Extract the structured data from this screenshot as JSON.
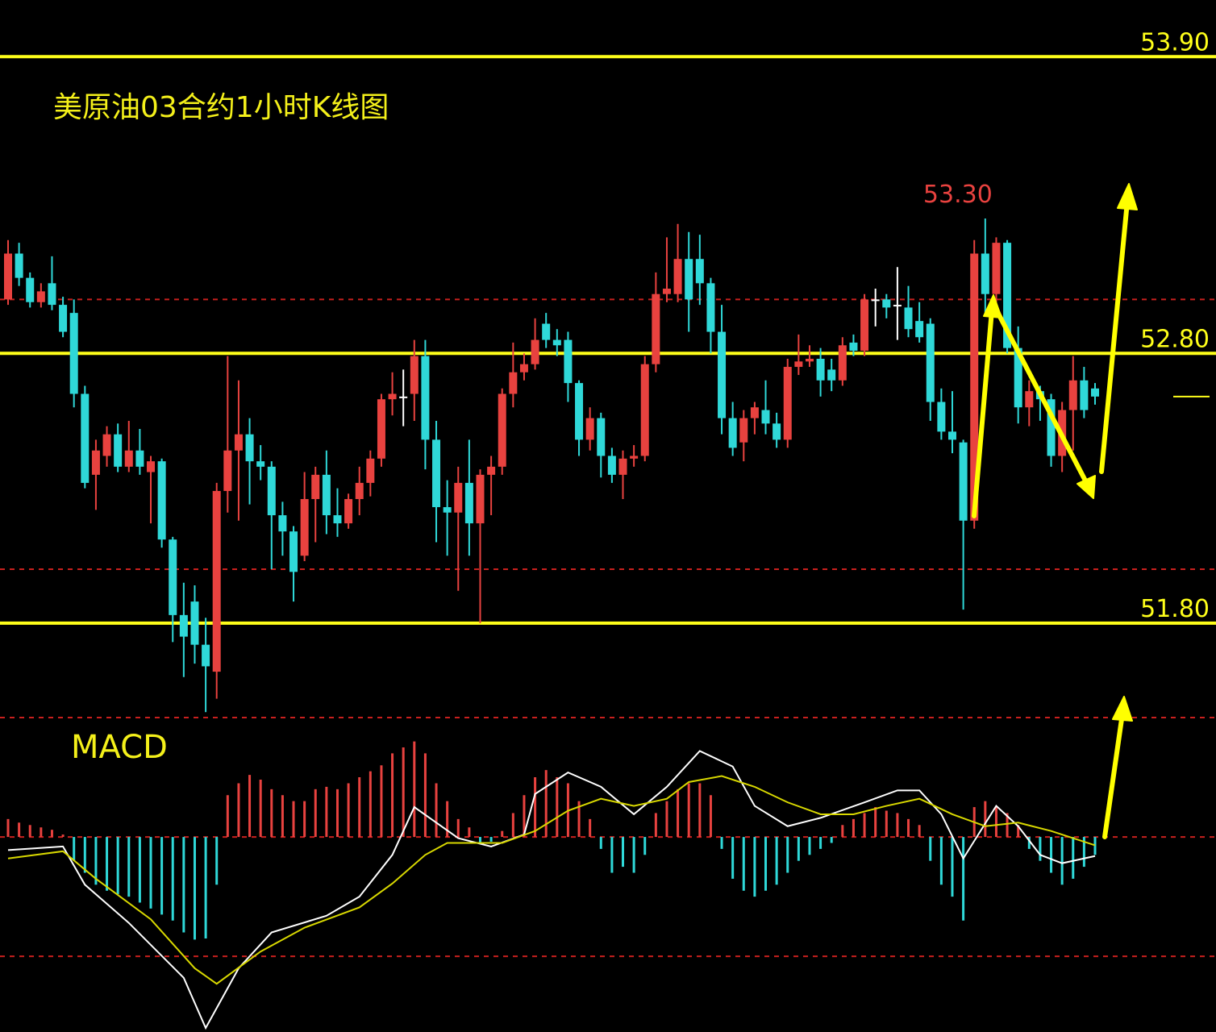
{
  "chart_data": {
    "type": "candlestick",
    "title": "美原油03合约1小时K线图",
    "ylim": [
      51.45,
      54.11
    ],
    "up_color": "#e8423f",
    "down_color": "#2fd8d8",
    "doji_color": "#ffffff",
    "levels": [
      {
        "value": 53.9,
        "label": "53.90"
      },
      {
        "value": 52.8,
        "label": "52.80"
      },
      {
        "value": 51.8,
        "label": "51.80"
      }
    ],
    "level_color": "#ffff1a",
    "grid_levels": [
      53,
      52
    ],
    "grid_color": "#c8201e",
    "high_label": "53.30",
    "ohlc": [
      [
        53.0,
        53.22,
        52.98,
        53.17
      ],
      [
        53.17,
        53.21,
        53.05,
        53.08
      ],
      [
        53.08,
        53.1,
        52.97,
        52.99
      ],
      [
        52.99,
        53.06,
        52.97,
        53.03
      ],
      [
        53.06,
        53.16,
        52.96,
        52.98
      ],
      [
        52.98,
        53.01,
        52.86,
        52.88
      ],
      [
        52.95,
        53.0,
        52.6,
        52.65
      ],
      [
        52.65,
        52.68,
        52.3,
        52.32
      ],
      [
        52.35,
        52.48,
        52.22,
        52.44
      ],
      [
        52.42,
        52.53,
        52.38,
        52.5
      ],
      [
        52.5,
        52.54,
        52.36,
        52.38
      ],
      [
        52.38,
        52.55,
        52.36,
        52.44
      ],
      [
        52.44,
        52.52,
        52.35,
        52.38
      ],
      [
        52.36,
        52.42,
        52.17,
        52.4
      ],
      [
        52.4,
        52.41,
        52.08,
        52.11
      ],
      [
        52.11,
        52.12,
        51.73,
        51.83
      ],
      [
        51.83,
        51.95,
        51.6,
        51.75
      ],
      [
        51.88,
        51.94,
        51.65,
        51.72
      ],
      [
        51.72,
        51.82,
        51.47,
        51.64
      ],
      [
        51.62,
        52.32,
        51.52,
        52.29
      ],
      [
        52.29,
        52.79,
        52.21,
        52.44
      ],
      [
        52.44,
        52.7,
        52.18,
        52.5
      ],
      [
        52.5,
        52.56,
        52.24,
        52.4
      ],
      [
        52.4,
        52.46,
        52.33,
        52.38
      ],
      [
        52.38,
        52.4,
        52.0,
        52.2
      ],
      [
        52.2,
        52.25,
        52.05,
        52.14
      ],
      [
        52.14,
        52.16,
        51.88,
        51.99
      ],
      [
        52.05,
        52.36,
        52.03,
        52.26
      ],
      [
        52.26,
        52.38,
        52.1,
        52.35
      ],
      [
        52.35,
        52.44,
        52.13,
        52.2
      ],
      [
        52.2,
        52.3,
        52.12,
        52.17
      ],
      [
        52.17,
        52.28,
        52.15,
        52.26
      ],
      [
        52.26,
        52.38,
        52.2,
        52.32
      ],
      [
        52.32,
        52.44,
        52.27,
        52.41
      ],
      [
        52.41,
        52.65,
        52.38,
        52.63
      ],
      [
        52.63,
        52.73,
        52.57,
        52.65
      ],
      [
        52.64,
        52.74,
        52.53,
        52.64
      ],
      [
        52.65,
        52.85,
        52.55,
        52.79
      ],
      [
        52.79,
        52.85,
        52.37,
        52.48
      ],
      [
        52.48,
        52.55,
        52.1,
        52.23
      ],
      [
        52.23,
        52.33,
        52.05,
        52.21
      ],
      [
        52.21,
        52.38,
        51.92,
        52.32
      ],
      [
        52.32,
        52.48,
        52.05,
        52.17
      ],
      [
        52.17,
        52.37,
        51.8,
        52.35
      ],
      [
        52.35,
        52.42,
        52.2,
        52.38
      ],
      [
        52.38,
        52.67,
        52.35,
        52.65
      ],
      [
        52.65,
        52.84,
        52.6,
        52.73
      ],
      [
        52.73,
        52.8,
        52.7,
        52.76
      ],
      [
        52.76,
        52.93,
        52.74,
        52.85
      ],
      [
        52.91,
        52.95,
        52.82,
        52.85
      ],
      [
        52.85,
        52.89,
        52.79,
        52.83
      ],
      [
        52.85,
        52.88,
        52.62,
        52.69
      ],
      [
        52.69,
        52.7,
        52.42,
        52.48
      ],
      [
        52.48,
        52.6,
        52.44,
        52.56
      ],
      [
        52.56,
        52.58,
        52.34,
        52.42
      ],
      [
        52.42,
        52.45,
        52.32,
        52.35
      ],
      [
        52.35,
        52.44,
        52.26,
        52.41
      ],
      [
        52.41,
        52.46,
        52.38,
        52.42
      ],
      [
        52.42,
        52.79,
        52.4,
        52.76
      ],
      [
        52.76,
        53.1,
        52.73,
        53.02
      ],
      [
        53.02,
        53.23,
        52.99,
        53.04
      ],
      [
        53.02,
        53.28,
        52.99,
        53.15
      ],
      [
        53.15,
        53.25,
        52.88,
        53.0
      ],
      [
        53.15,
        53.24,
        52.98,
        53.06
      ],
      [
        53.06,
        53.08,
        52.8,
        52.88
      ],
      [
        52.88,
        52.98,
        52.5,
        52.56
      ],
      [
        52.56,
        52.62,
        52.42,
        52.45
      ],
      [
        52.47,
        52.59,
        52.4,
        52.56
      ],
      [
        52.56,
        52.62,
        52.5,
        52.6
      ],
      [
        52.59,
        52.7,
        52.5,
        52.54
      ],
      [
        52.54,
        52.58,
        52.45,
        52.48
      ],
      [
        52.48,
        52.78,
        52.45,
        52.75
      ],
      [
        52.75,
        52.87,
        52.72,
        52.77
      ],
      [
        52.77,
        52.83,
        52.75,
        52.78
      ],
      [
        52.78,
        52.82,
        52.64,
        52.7
      ],
      [
        52.74,
        52.78,
        52.66,
        52.7
      ],
      [
        52.7,
        52.86,
        52.68,
        52.83
      ],
      [
        52.84,
        52.87,
        52.79,
        52.81
      ],
      [
        52.81,
        53.02,
        52.79,
        53.0
      ],
      [
        53.0,
        53.04,
        52.9,
        53.0
      ],
      [
        53.0,
        53.02,
        52.93,
        52.97
      ],
      [
        52.98,
        53.12,
        52.85,
        52.98
      ],
      [
        52.97,
        53.05,
        52.86,
        52.89
      ],
      [
        52.92,
        52.99,
        52.84,
        52.86
      ],
      [
        52.91,
        52.93,
        52.55,
        52.62
      ],
      [
        52.62,
        52.67,
        52.48,
        52.51
      ],
      [
        52.51,
        52.66,
        52.43,
        52.48
      ],
      [
        52.47,
        52.48,
        51.85,
        52.18
      ],
      [
        52.18,
        53.22,
        52.15,
        53.17
      ],
      [
        53.17,
        53.3,
        52.95,
        53.02
      ],
      [
        53.02,
        53.23,
        52.98,
        53.21
      ],
      [
        53.21,
        53.22,
        52.8,
        52.82
      ],
      [
        52.82,
        52.9,
        52.54,
        52.6
      ],
      [
        52.6,
        52.7,
        52.53,
        52.66
      ],
      [
        52.66,
        52.68,
        52.55,
        52.63
      ],
      [
        52.63,
        52.65,
        52.38,
        52.42
      ],
      [
        52.42,
        52.62,
        52.36,
        52.59
      ],
      [
        52.59,
        52.79,
        52.44,
        52.7
      ],
      [
        52.7,
        52.75,
        52.56,
        52.59
      ],
      [
        52.67,
        52.69,
        52.61,
        52.64
      ]
    ],
    "macd": {
      "label": "MACD",
      "ylim": [
        -0.16,
        0.1
      ],
      "grid_levels": [
        0,
        -0.1
      ],
      "histogram": {
        "up_color": "#e8423f",
        "down_color": "#2fd8d8",
        "values": [
          0.015,
          0.012,
          0.01,
          0.008,
          0.006,
          0.002,
          -0.02,
          -0.03,
          -0.04,
          -0.045,
          -0.048,
          -0.05,
          -0.055,
          -0.06,
          -0.065,
          -0.07,
          -0.08,
          -0.086,
          -0.085,
          -0.04,
          0.035,
          0.045,
          0.052,
          0.048,
          0.04,
          0.035,
          0.03,
          0.03,
          0.04,
          0.042,
          0.04,
          0.045,
          0.05,
          0.055,
          0.06,
          0.07,
          0.075,
          0.08,
          0.07,
          0.045,
          0.03,
          0.015,
          0.008,
          -0.005,
          -0.004,
          0.005,
          0.02,
          0.035,
          0.05,
          0.056,
          0.05,
          0.045,
          0.03,
          0.015,
          -0.01,
          -0.03,
          -0.025,
          -0.03,
          -0.015,
          0.02,
          0.03,
          0.04,
          0.045,
          0.045,
          0.035,
          -0.01,
          -0.035,
          -0.045,
          -0.05,
          -0.045,
          -0.04,
          -0.03,
          -0.02,
          -0.015,
          -0.01,
          -0.005,
          0.01,
          0.015,
          0.02,
          0.025,
          0.022,
          0.02,
          0.015,
          0.01,
          -0.02,
          -0.04,
          -0.05,
          -0.07,
          0.025,
          0.03,
          0.025,
          0.02,
          0.01,
          -0.01,
          -0.02,
          -0.03,
          -0.04,
          -0.035,
          -0.025,
          -0.015
        ]
      },
      "series": [
        {
          "color": "#ffffff",
          "x": [
            0,
            5,
            7,
            11,
            16,
            18,
            21,
            24,
            29,
            32,
            35,
            37,
            41,
            44,
            47,
            48,
            51,
            54,
            57,
            60,
            62,
            63,
            66,
            68,
            71,
            74,
            78,
            81,
            83,
            85,
            87,
            90,
            92,
            94,
            96,
            99
          ],
          "values": [
            -0.011,
            -0.008,
            -0.04,
            -0.072,
            -0.118,
            -0.16,
            -0.11,
            -0.08,
            -0.066,
            -0.05,
            -0.015,
            0.025,
            -0.001,
            -0.008,
            0.002,
            0.036,
            0.054,
            0.042,
            0.019,
            0.042,
            0.062,
            0.072,
            0.059,
            0.026,
            0.009,
            0.016,
            0.029,
            0.039,
            0.039,
            0.019,
            -0.018,
            0.026,
            0.009,
            -0.015,
            -0.022,
            -0.016
          ]
        },
        {
          "color": "#d8d800",
          "x": [
            0,
            5,
            8,
            13,
            17,
            19,
            23,
            27,
            32,
            35,
            38,
            40,
            45,
            48,
            51,
            54,
            57,
            60,
            62,
            65,
            68,
            71,
            74,
            77,
            80,
            83,
            86,
            89,
            92,
            95,
            99
          ],
          "values": [
            -0.018,
            -0.012,
            -0.035,
            -0.069,
            -0.11,
            -0.123,
            -0.096,
            -0.076,
            -0.059,
            -0.039,
            -0.015,
            -0.005,
            -0.005,
            0.005,
            0.022,
            0.032,
            0.026,
            0.032,
            0.046,
            0.051,
            0.042,
            0.029,
            0.019,
            0.019,
            0.026,
            0.032,
            0.019,
            0.009,
            0.012,
            0.005,
            -0.007
          ]
        }
      ]
    }
  }
}
